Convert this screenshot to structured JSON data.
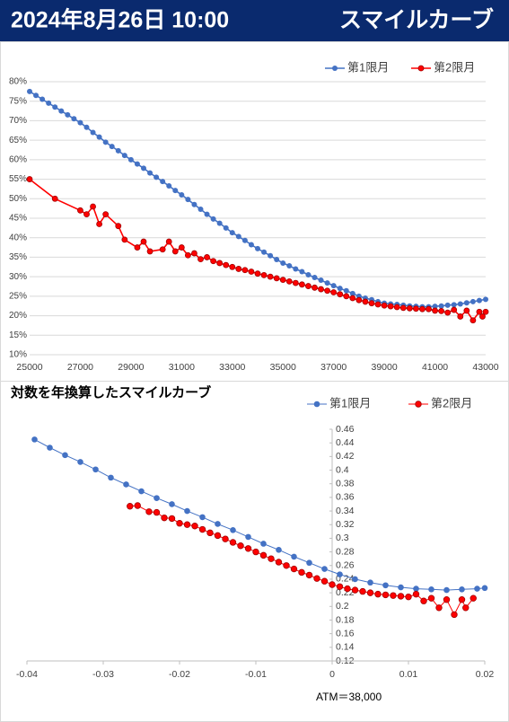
{
  "header": {
    "date": "2024年8月26日 10:00",
    "title": "スマイルカーブ"
  },
  "chart_data": [
    {
      "type": "line",
      "legend": "top-right",
      "grid": true,
      "y_axis_position": "left",
      "xlim": [
        25000,
        43000
      ],
      "xticks": [
        25000,
        27000,
        29000,
        31000,
        33000,
        35000,
        37000,
        39000,
        41000,
        43000
      ],
      "ylim": [
        10,
        80
      ],
      "yticks": [
        {
          "value": 10,
          "label": "10%"
        },
        {
          "value": 15,
          "label": "15%"
        },
        {
          "value": 20,
          "label": "20%"
        },
        {
          "value": 25,
          "label": "25%"
        },
        {
          "value": 30,
          "label": "30%"
        },
        {
          "value": 35,
          "label": "35%"
        },
        {
          "value": 40,
          "label": "40%"
        },
        {
          "value": 45,
          "label": "45%"
        },
        {
          "value": 50,
          "label": "50%"
        },
        {
          "value": 55,
          "label": "55%"
        },
        {
          "value": 60,
          "label": "60%"
        },
        {
          "value": 65,
          "label": "65%"
        },
        {
          "value": 70,
          "label": "70%"
        },
        {
          "value": 75,
          "label": "75%"
        },
        {
          "value": 80,
          "label": "80%"
        }
      ],
      "series": [
        {
          "name": "第1限月",
          "color": "#4472c4",
          "x": [
            25000,
            25250,
            25500,
            25750,
            26000,
            26250,
            26500,
            26750,
            27000,
            27250,
            27500,
            27750,
            28000,
            28250,
            28500,
            28750,
            29000,
            29250,
            29500,
            29750,
            30000,
            30250,
            30500,
            30750,
            31000,
            31250,
            31500,
            31750,
            32000,
            32250,
            32500,
            32750,
            33000,
            33250,
            33500,
            33750,
            34000,
            34250,
            34500,
            34750,
            35000,
            35250,
            35500,
            35750,
            36000,
            36250,
            36500,
            36750,
            37000,
            37250,
            37500,
            37750,
            38000,
            38250,
            38500,
            38750,
            39000,
            39250,
            39500,
            39750,
            40000,
            40250,
            40500,
            40750,
            41000,
            41250,
            41500,
            41750,
            42000,
            42250,
            42500,
            42750,
            43000
          ],
          "values": [
            77.5,
            76.5,
            75.5,
            74.5,
            73.5,
            72.5,
            71.5,
            70.5,
            69.5,
            68.3,
            67,
            65.8,
            64.5,
            63.4,
            62.3,
            61.1,
            60,
            58.9,
            57.8,
            56.6,
            55.5,
            54.4,
            53.3,
            52.1,
            51,
            49.8,
            48.5,
            47.3,
            46,
            44.8,
            43.7,
            42.5,
            41.3,
            40.3,
            39.3,
            38.2,
            37.2,
            36.3,
            35.4,
            34.4,
            33.5,
            32.8,
            32,
            31.3,
            30.5,
            29.8,
            29.1,
            28.4,
            27.7,
            27,
            26.4,
            25.7,
            25,
            24.5,
            24.1,
            23.6,
            23.2,
            23,
            22.9,
            22.7,
            22.5,
            22.4,
            22.3,
            22.3,
            22.4,
            22.5,
            22.7,
            22.8,
            23,
            23.3,
            23.6,
            23.9,
            24.2
          ]
        },
        {
          "name": "第2限月",
          "color": "#ff0000",
          "x": [
            25000,
            26000,
            27000,
            27250,
            27500,
            27750,
            28000,
            28500,
            28750,
            29250,
            29500,
            29750,
            30250,
            30500,
            30750,
            31000,
            31250,
            31500,
            31750,
            32000,
            32250,
            32500,
            32750,
            33000,
            33250,
            33500,
            33750,
            34000,
            34250,
            34500,
            34750,
            35000,
            35250,
            35500,
            35750,
            36000,
            36250,
            36500,
            36750,
            37000,
            37250,
            37500,
            37750,
            38000,
            38250,
            38500,
            38750,
            39000,
            39250,
            39500,
            39750,
            40000,
            40250,
            40500,
            40750,
            41000,
            41250,
            41500,
            41750,
            42000,
            42250,
            42500,
            42750,
            42875,
            43000
          ],
          "values": [
            55,
            50,
            47,
            46,
            48,
            43.5,
            46,
            43,
            39.5,
            37.5,
            39,
            36.5,
            37,
            39,
            36.5,
            37.5,
            35.5,
            36,
            34.5,
            35,
            34,
            33.5,
            33,
            32.5,
            32,
            31.7,
            31.3,
            30.8,
            30.4,
            30,
            29.6,
            29.2,
            28.8,
            28.4,
            28,
            27.6,
            27.2,
            26.8,
            26.4,
            26,
            25.5,
            25,
            24.5,
            24,
            23.6,
            23.2,
            22.9,
            22.6,
            22.4,
            22.2,
            22,
            21.9,
            21.8,
            21.7,
            21.7,
            21.3,
            21.2,
            20.8,
            21.5,
            19.8,
            21.3,
            18.8,
            21,
            19.8,
            21
          ]
        }
      ]
    },
    {
      "type": "line",
      "title": "対数を年換算したスマイルカーブ",
      "annotation": "ATM＝38,000",
      "legend": "top-right",
      "grid": false,
      "y_axis_position": "zero",
      "xlim": [
        -0.04,
        0.02
      ],
      "xticks": [
        -0.04,
        -0.03,
        -0.02,
        -0.01,
        0,
        0.01,
        0.02
      ],
      "ylim": [
        0.12,
        0.46
      ],
      "yticks": [
        0.12,
        0.14,
        0.16,
        0.18,
        0.2,
        0.22,
        0.24,
        0.26,
        0.28,
        0.3,
        0.32,
        0.34,
        0.36,
        0.38,
        0.4,
        0.42,
        0.44,
        0.46
      ],
      "series": [
        {
          "name": "第1限月",
          "color": "#4472c4",
          "x": [
            -0.039,
            -0.037,
            -0.035,
            -0.033,
            -0.031,
            -0.029,
            -0.027,
            -0.025,
            -0.023,
            -0.021,
            -0.019,
            -0.017,
            -0.015,
            -0.013,
            -0.011,
            -0.009,
            -0.007,
            -0.005,
            -0.003,
            -0.001,
            0.001,
            0.003,
            0.005,
            0.007,
            0.009,
            0.011,
            0.013,
            0.015,
            0.017,
            0.019,
            0.02
          ],
          "values": [
            0.445,
            0.433,
            0.422,
            0.412,
            0.401,
            0.389,
            0.379,
            0.369,
            0.359,
            0.35,
            0.34,
            0.331,
            0.321,
            0.312,
            0.302,
            0.292,
            0.283,
            0.273,
            0.264,
            0.255,
            0.247,
            0.24,
            0.235,
            0.231,
            0.228,
            0.226,
            0.225,
            0.224,
            0.225,
            0.226,
            0.227
          ]
        },
        {
          "name": "第2限月",
          "color": "#ff0000",
          "x": [
            -0.0265,
            -0.0255,
            -0.024,
            -0.023,
            -0.022,
            -0.021,
            -0.02,
            -0.019,
            -0.018,
            -0.017,
            -0.016,
            -0.015,
            -0.014,
            -0.013,
            -0.012,
            -0.011,
            -0.01,
            -0.009,
            -0.008,
            -0.007,
            -0.006,
            -0.005,
            -0.004,
            -0.003,
            -0.002,
            -0.001,
            0,
            0.001,
            0.002,
            0.003,
            0.004,
            0.005,
            0.006,
            0.007,
            0.008,
            0.009,
            0.01,
            0.011,
            0.012,
            0.013,
            0.014,
            0.015,
            0.016,
            0.017,
            0.0175,
            0.0185
          ],
          "values": [
            0.347,
            0.348,
            0.339,
            0.338,
            0.33,
            0.329,
            0.322,
            0.32,
            0.318,
            0.313,
            0.308,
            0.304,
            0.299,
            0.294,
            0.289,
            0.285,
            0.28,
            0.275,
            0.27,
            0.265,
            0.26,
            0.255,
            0.25,
            0.246,
            0.241,
            0.237,
            0.232,
            0.229,
            0.226,
            0.224,
            0.222,
            0.22,
            0.218,
            0.217,
            0.216,
            0.215,
            0.214,
            0.218,
            0.208,
            0.212,
            0.198,
            0.21,
            0.188,
            0.21,
            0.198,
            0.212
          ]
        }
      ]
    }
  ]
}
